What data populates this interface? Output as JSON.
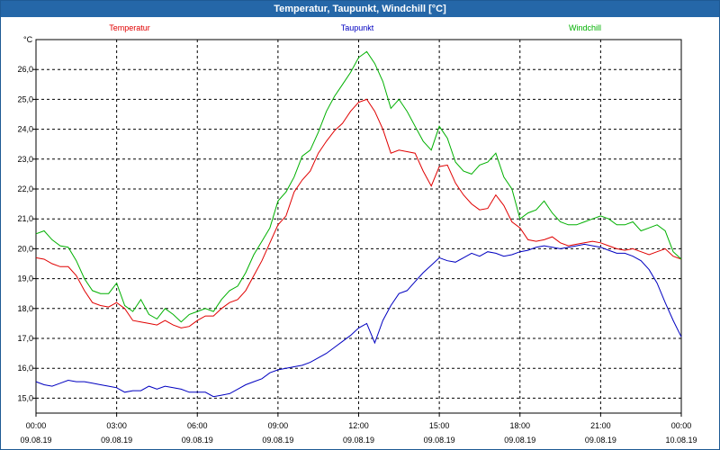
{
  "window": {
    "title": "Temperatur, Taupunkt, Windchill [°C]"
  },
  "chart_data": {
    "type": "line",
    "ylabel": "°C",
    "ylim": [
      14.5,
      27.0
    ],
    "yticks": [
      15.0,
      16.0,
      17.0,
      18.0,
      19.0,
      20.0,
      21.0,
      22.0,
      23.0,
      24.0,
      25.0,
      26.0
    ],
    "ytick_labels": [
      "15,0",
      "16,0",
      "17,0",
      "18,0",
      "19,0",
      "20,0",
      "21,0",
      "22,0",
      "23,0",
      "24,0",
      "25,0",
      "26,0"
    ],
    "xlim": [
      0,
      24
    ],
    "xticks": [
      {
        "x": 0,
        "time": "00:00",
        "date": "09.08.19"
      },
      {
        "x": 3,
        "time": "03:00",
        "date": "09.08.19"
      },
      {
        "x": 6,
        "time": "06:00",
        "date": "09.08.19"
      },
      {
        "x": 9,
        "time": "09:00",
        "date": "09.08.19"
      },
      {
        "x": 12,
        "time": "12:00",
        "date": "09.08.19"
      },
      {
        "x": 15,
        "time": "15:00",
        "date": "09.08.19"
      },
      {
        "x": 18,
        "time": "18:00",
        "date": "09.08.19"
      },
      {
        "x": 21,
        "time": "21:00",
        "date": "09.08.19"
      },
      {
        "x": 24,
        "time": "00:00",
        "date": "10.08.19"
      }
    ],
    "grid": true,
    "colors": {
      "temperatur": "#e00000",
      "taupunkt": "#0000c0",
      "windchill": "#00b000"
    },
    "series": [
      {
        "name": "Temperatur",
        "key": "temperatur",
        "x": [
          0,
          0.3,
          0.6,
          0.9,
          1.2,
          1.5,
          1.8,
          2.1,
          2.4,
          2.7,
          3.0,
          3.3,
          3.6,
          3.9,
          4.2,
          4.5,
          4.8,
          5.1,
          5.4,
          5.7,
          6.0,
          6.3,
          6.6,
          6.9,
          7.2,
          7.5,
          7.8,
          8.1,
          8.4,
          8.7,
          9.0,
          9.3,
          9.6,
          9.9,
          10.2,
          10.5,
          10.8,
          11.1,
          11.4,
          11.7,
          12.0,
          12.3,
          12.6,
          12.9,
          13.2,
          13.5,
          13.8,
          14.1,
          14.4,
          14.7,
          15.0,
          15.3,
          15.6,
          15.9,
          16.2,
          16.5,
          16.8,
          17.1,
          17.4,
          17.7,
          18.0,
          18.3,
          18.6,
          18.9,
          19.2,
          19.5,
          19.8,
          20.1,
          20.4,
          20.7,
          21.0,
          21.3,
          21.6,
          21.9,
          22.2,
          22.5,
          22.8,
          23.1,
          23.4,
          23.7,
          24.0
        ],
        "values": [
          19.7,
          19.65,
          19.5,
          19.4,
          19.4,
          19.1,
          18.6,
          18.2,
          18.1,
          18.05,
          18.2,
          18.0,
          17.6,
          17.55,
          17.5,
          17.45,
          17.6,
          17.45,
          17.35,
          17.4,
          17.6,
          17.75,
          17.75,
          18.0,
          18.2,
          18.3,
          18.6,
          19.1,
          19.6,
          20.2,
          20.8,
          21.1,
          21.9,
          22.3,
          22.6,
          23.2,
          23.6,
          23.95,
          24.2,
          24.6,
          24.9,
          25.0,
          24.6,
          24.0,
          23.2,
          23.3,
          23.25,
          23.2,
          22.6,
          22.1,
          22.75,
          22.8,
          22.2,
          21.8,
          21.5,
          21.3,
          21.35,
          21.8,
          21.45,
          20.9,
          20.7,
          20.3,
          20.25,
          20.3,
          20.4,
          20.2,
          20.1,
          20.15,
          20.2,
          20.25,
          20.2,
          20.1,
          20.0,
          19.95,
          20.0,
          19.9,
          19.8,
          19.9,
          20.0,
          19.75,
          19.65
        ]
      },
      {
        "name": "Taupunkt",
        "key": "taupunkt",
        "x": [
          0,
          0.3,
          0.6,
          0.9,
          1.2,
          1.5,
          1.8,
          2.1,
          2.4,
          2.7,
          3.0,
          3.3,
          3.6,
          3.9,
          4.2,
          4.5,
          4.8,
          5.1,
          5.4,
          5.7,
          6.0,
          6.3,
          6.6,
          6.9,
          7.2,
          7.5,
          7.8,
          8.1,
          8.4,
          8.7,
          9.0,
          9.3,
          9.6,
          9.9,
          10.2,
          10.5,
          10.8,
          11.1,
          11.4,
          11.7,
          12.0,
          12.3,
          12.6,
          12.9,
          13.2,
          13.5,
          13.8,
          14.1,
          14.4,
          14.7,
          15.0,
          15.3,
          15.6,
          15.9,
          16.2,
          16.5,
          16.8,
          17.1,
          17.4,
          17.7,
          18.0,
          18.3,
          18.6,
          18.9,
          19.2,
          19.5,
          19.8,
          20.1,
          20.4,
          20.7,
          21.0,
          21.3,
          21.6,
          21.9,
          22.2,
          22.5,
          22.8,
          23.1,
          23.4,
          23.7,
          24.0
        ],
        "values": [
          15.55,
          15.45,
          15.4,
          15.5,
          15.6,
          15.55,
          15.55,
          15.5,
          15.45,
          15.4,
          15.35,
          15.2,
          15.25,
          15.25,
          15.4,
          15.3,
          15.4,
          15.35,
          15.3,
          15.2,
          15.2,
          15.2,
          15.05,
          15.1,
          15.15,
          15.3,
          15.45,
          15.55,
          15.65,
          15.85,
          15.95,
          16.0,
          16.05,
          16.1,
          16.2,
          16.35,
          16.5,
          16.7,
          16.9,
          17.1,
          17.35,
          17.5,
          16.85,
          17.6,
          18.1,
          18.5,
          18.6,
          18.9,
          19.2,
          19.45,
          19.7,
          19.6,
          19.55,
          19.7,
          19.85,
          19.75,
          19.9,
          19.85,
          19.75,
          19.8,
          19.9,
          19.95,
          20.05,
          20.1,
          20.05,
          20.0,
          20.05,
          20.1,
          20.15,
          20.1,
          20.05,
          19.95,
          19.85,
          19.85,
          19.75,
          19.6,
          19.3,
          18.85,
          18.2,
          17.6,
          17.05
        ]
      },
      {
        "name": "Windchill",
        "key": "windchill",
        "x": [
          0,
          0.3,
          0.6,
          0.9,
          1.2,
          1.5,
          1.8,
          2.1,
          2.4,
          2.7,
          3.0,
          3.3,
          3.6,
          3.9,
          4.2,
          4.5,
          4.8,
          5.1,
          5.4,
          5.7,
          6.0,
          6.3,
          6.6,
          6.9,
          7.2,
          7.5,
          7.8,
          8.1,
          8.4,
          8.7,
          9.0,
          9.3,
          9.6,
          9.9,
          10.2,
          10.5,
          10.8,
          11.1,
          11.4,
          11.7,
          12.0,
          12.3,
          12.6,
          12.9,
          13.2,
          13.5,
          13.8,
          14.1,
          14.4,
          14.7,
          15.0,
          15.3,
          15.6,
          15.9,
          16.2,
          16.5,
          16.8,
          17.1,
          17.4,
          17.7,
          18.0,
          18.3,
          18.6,
          18.9,
          19.2,
          19.5,
          19.8,
          20.1,
          20.4,
          20.7,
          21.0,
          21.3,
          21.6,
          21.9,
          22.2,
          22.5,
          22.8,
          23.1,
          23.4,
          23.7,
          24.0
        ],
        "values": [
          20.5,
          20.6,
          20.3,
          20.1,
          20.05,
          19.6,
          19.0,
          18.6,
          18.5,
          18.5,
          18.85,
          18.1,
          17.9,
          18.3,
          17.8,
          17.65,
          18.0,
          17.8,
          17.55,
          17.8,
          17.9,
          18.0,
          17.9,
          18.3,
          18.6,
          18.75,
          19.2,
          19.8,
          20.25,
          20.7,
          21.6,
          21.9,
          22.4,
          23.1,
          23.3,
          23.9,
          24.6,
          25.1,
          25.5,
          25.9,
          26.4,
          26.6,
          26.2,
          25.6,
          24.7,
          25.0,
          24.6,
          24.1,
          23.6,
          23.3,
          24.1,
          23.7,
          22.9,
          22.6,
          22.5,
          22.8,
          22.9,
          23.2,
          22.4,
          22.0,
          21.0,
          21.2,
          21.3,
          21.6,
          21.2,
          20.9,
          20.8,
          20.8,
          20.9,
          21.0,
          21.1,
          21.0,
          20.8,
          20.8,
          20.9,
          20.6,
          20.7,
          20.8,
          20.6,
          19.9,
          19.65
        ]
      }
    ]
  }
}
